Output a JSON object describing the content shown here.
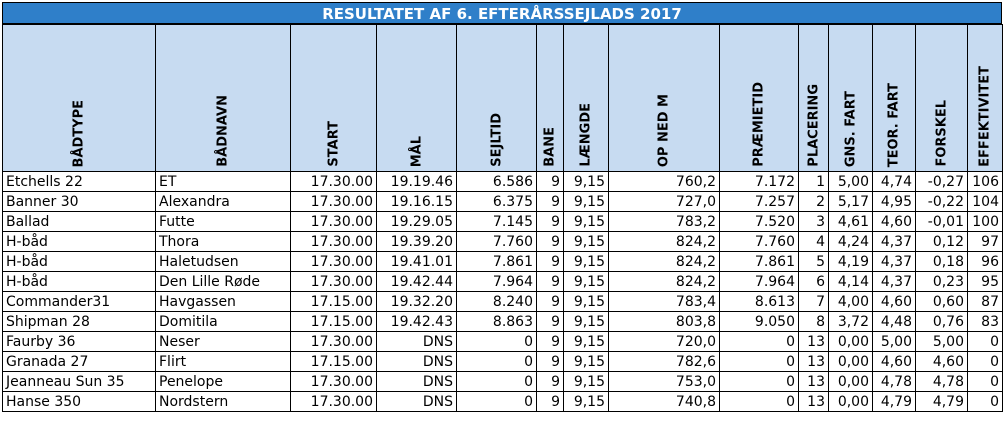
{
  "title": "RESULTATET AF 6. EFTERÅRSSEJLADS 2017",
  "columns": [
    "BÅDTYPE",
    "BÅDNAVN",
    "START",
    "MÅL",
    "SEJLTID",
    "BANE",
    "LÆNGDE",
    "OP NED M",
    "PRÆMIETID",
    "PLACERING",
    "GNS. FART",
    "TEOR. FART",
    "FORSKEL",
    "EFFEKTIVITET"
  ],
  "rows": [
    [
      "Etchells 22",
      "ET",
      "17.30.00",
      "19.19.46",
      "6.586",
      "9",
      "9,15",
      "760,2",
      "7.172",
      "1",
      "5,00",
      "4,74",
      "-0,27",
      "106"
    ],
    [
      "Banner 30",
      "Alexandra",
      "17.30.00",
      "19.16.15",
      "6.375",
      "9",
      "9,15",
      "727,0",
      "7.257",
      "2",
      "5,17",
      "4,95",
      "-0,22",
      "104"
    ],
    [
      "Ballad",
      "Futte",
      "17.30.00",
      "19.29.05",
      "7.145",
      "9",
      "9,15",
      "783,2",
      "7.520",
      "3",
      "4,61",
      "4,60",
      "-0,01",
      "100"
    ],
    [
      "H-båd",
      "Thora",
      "17.30.00",
      "19.39.20",
      "7.760",
      "9",
      "9,15",
      "824,2",
      "7.760",
      "4",
      "4,24",
      "4,37",
      "0,12",
      "97"
    ],
    [
      "H-båd",
      "Haletudsen",
      "17.30.00",
      "19.41.01",
      "7.861",
      "9",
      "9,15",
      "824,2",
      "7.861",
      "5",
      "4,19",
      "4,37",
      "0,18",
      "96"
    ],
    [
      "H-båd",
      "Den Lille Røde",
      "17.30.00",
      "19.42.44",
      "7.964",
      "9",
      "9,15",
      "824,2",
      "7.964",
      "6",
      "4,14",
      "4,37",
      "0,23",
      "95"
    ],
    [
      "Commander31",
      "Havgassen",
      "17.15.00",
      "19.32.20",
      "8.240",
      "9",
      "9,15",
      "783,4",
      "8.613",
      "7",
      "4,00",
      "4,60",
      "0,60",
      "87"
    ],
    [
      "Shipman 28",
      "Domitila",
      "17.15.00",
      "19.42.43",
      "8.863",
      "9",
      "9,15",
      "803,8",
      "9.050",
      "8",
      "3,72",
      "4,48",
      "0,76",
      "83"
    ],
    [
      "Faurby 36",
      "Neser",
      "17.30.00",
      "DNS",
      "0",
      "9",
      "9,15",
      "720,0",
      "0",
      "13",
      "0,00",
      "5,00",
      "5,00",
      "0"
    ],
    [
      "Granada 27",
      "Flirt",
      "17.15.00",
      "DNS",
      "0",
      "9",
      "9,15",
      "782,6",
      "0",
      "13",
      "0,00",
      "4,60",
      "4,60",
      "0"
    ],
    [
      "Jeanneau Sun 35",
      "Penelope",
      "17.30.00",
      "DNS",
      "0",
      "9",
      "9,15",
      "753,0",
      "0",
      "13",
      "0,00",
      "4,78",
      "4,78",
      "0"
    ],
    [
      "Hanse 350",
      "Nordstern",
      "17.30.00",
      "DNS",
      "0",
      "9",
      "9,15",
      "740,8",
      "0",
      "13",
      "0,00",
      "4,79",
      "4,79",
      "0"
    ]
  ]
}
